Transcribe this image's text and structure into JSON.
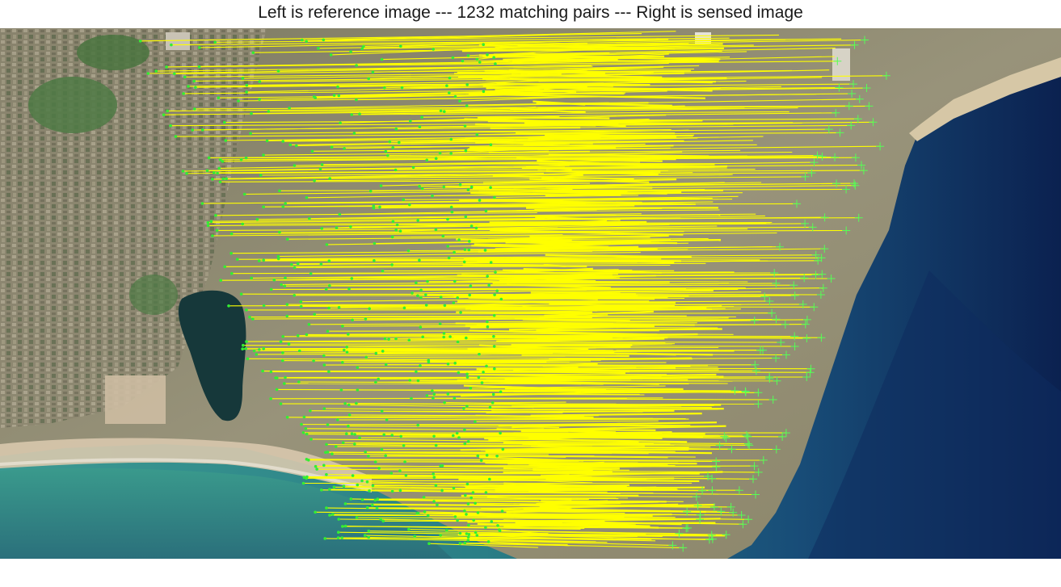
{
  "figure": {
    "title": "Left is reference image --- 1232 matching pairs --- Right is sensed image"
  },
  "colors": {
    "match_line": "#ffff00",
    "ref_point": "#33ee33",
    "sensed_marker": "#55ff55",
    "sea_shallow": "#2f8c88",
    "sea_deep": "#0b2150",
    "land": "#8d8a6d",
    "beach": "#c9b79a"
  },
  "matches": {
    "pair_count": 1232
  },
  "icons": {
    "ref_point": "green-dot-icon",
    "sensed_marker": "green-plus-icon"
  }
}
